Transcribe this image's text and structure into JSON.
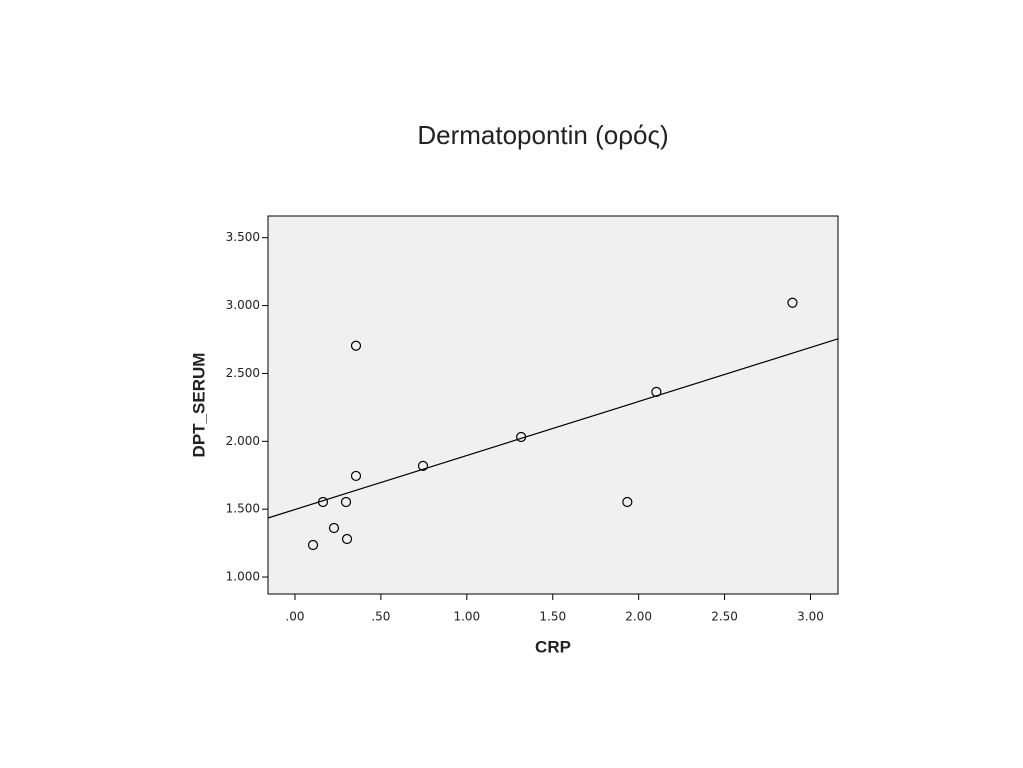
{
  "chart_data": {
    "type": "scatter",
    "title": "Dermatopontin (ορός)",
    "x_label": "CRP",
    "y_label": "DPT_SERUM",
    "xlim": [
      -0.157,
      3.16
    ],
    "ylim": [
      0.875,
      3.66
    ],
    "xticks": [
      {
        "value": 0,
        "label": ".00"
      },
      {
        "value": 0.5,
        "label": ".50"
      },
      {
        "value": 1,
        "label": "1.00"
      },
      {
        "value": 1.5,
        "label": "1.50"
      },
      {
        "value": 2,
        "label": "2.00"
      },
      {
        "value": 2.5,
        "label": "2.50"
      },
      {
        "value": 3,
        "label": "3.00"
      }
    ],
    "yticks": [
      {
        "value": 1,
        "label": "1.000"
      },
      {
        "value": 1.5,
        "label": "1.500"
      },
      {
        "value": 2,
        "label": "2.000"
      },
      {
        "value": 2.5,
        "label": "2.500"
      },
      {
        "value": 3,
        "label": "3.000"
      },
      {
        "value": 3.5,
        "label": "3.500"
      }
    ],
    "x": [
      0.105,
      0.163,
      0.227,
      0.297,
      0.303,
      0.355,
      0.355,
      0.745,
      1.316,
      1.934,
      2.103,
      2.895
    ],
    "values": [
      1.236,
      1.553,
      1.361,
      1.553,
      1.28,
      2.704,
      1.745,
      1.819,
      2.032,
      1.553,
      2.364,
      3.021
    ],
    "fit_line": {
      "x": [
        -0.157,
        3.16
      ],
      "y": [
        1.435,
        2.755
      ]
    },
    "color": "#000000",
    "background": "#f0f0f0"
  }
}
